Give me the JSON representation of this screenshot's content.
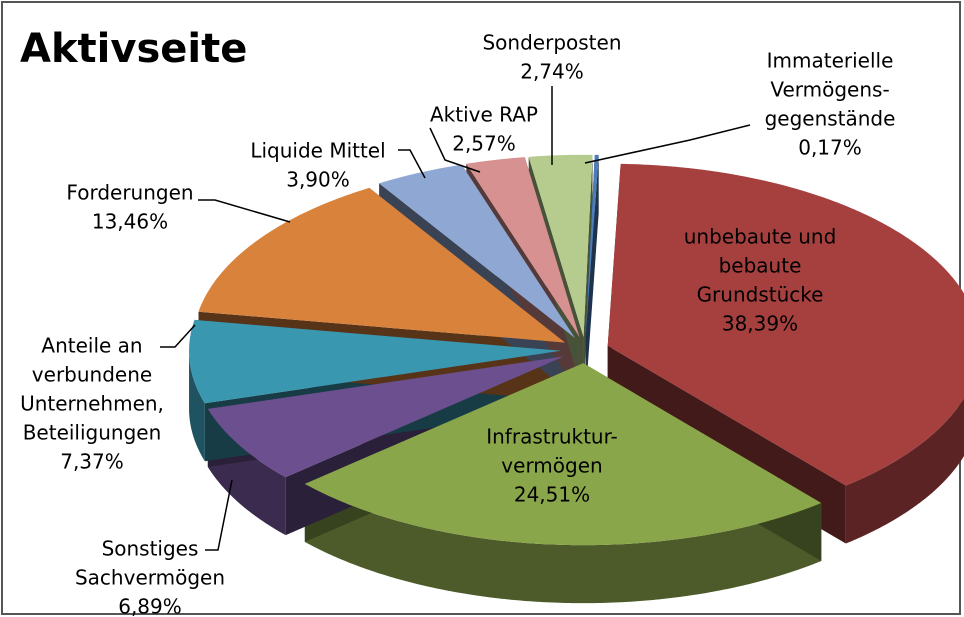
{
  "chart_data": {
    "type": "pie3d",
    "title": "Aktivseite",
    "categories": [
      [
        "unbebaute und",
        "bebaute",
        "Grundstücke"
      ],
      [
        "Infrastruktur-",
        "vermögen"
      ],
      [
        "Sonstiges",
        "Sachvermögen"
      ],
      [
        "Anteile an",
        "verbundene",
        "Unternehmen,",
        "Beteiligungen"
      ],
      [
        "Forderungen"
      ],
      [
        "Liquide Mittel"
      ],
      [
        "Aktive RAP"
      ],
      [
        "Sonderposten"
      ],
      [
        "Immaterielle",
        "Vermögens-",
        "gegenstände"
      ]
    ],
    "values": [
      38.39,
      24.51,
      6.89,
      7.37,
      13.46,
      3.9,
      2.57,
      2.74,
      0.17
    ],
    "value_labels": [
      "38,39%",
      "24,51%",
      "6,89%",
      "7,37%",
      "13,46%",
      "3,90%",
      "2,57%",
      "2,74%",
      "0,17%"
    ],
    "colors": [
      "#a5403f",
      "#8aa64a",
      "#6b4f8e",
      "#3a97b0",
      "#d9823b",
      "#8ea7d3",
      "#d69190",
      "#b5cc8e",
      "#4a7ebb"
    ]
  }
}
